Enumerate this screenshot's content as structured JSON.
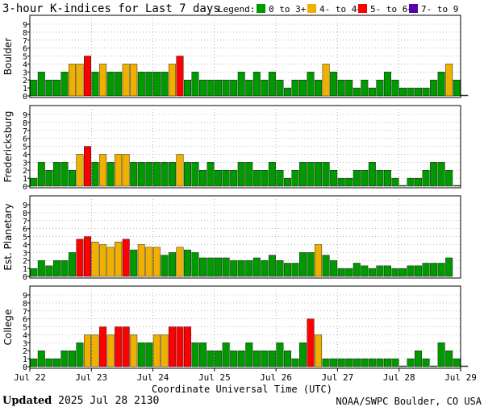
{
  "chart_data": {
    "type": "bar",
    "title": "3-hour K-indices for Last 7 days",
    "legend": {
      "label": "Legend:",
      "placement": "top-right",
      "entries": [
        {
          "label": "0 to 3+",
          "color": "#009900"
        },
        {
          "label": "4- to 4+",
          "color": "#f0b000"
        },
        {
          "label": "5- to 6+",
          "color": "#ff0000"
        },
        {
          "label": "7- to 9",
          "color": "#5500aa"
        }
      ]
    },
    "xlabel": "Coordinate Universal Time (UTC)",
    "x_ticks": [
      "Jul 22",
      "Jul 23",
      "Jul 24",
      "Jul 25",
      "Jul 26",
      "Jul 27",
      "Jul 28",
      "Jul 29"
    ],
    "ylim": [
      0,
      9
    ],
    "y_ticks": [
      "0",
      "1",
      "2",
      "3",
      "4",
      "5",
      "6",
      "7",
      "8",
      "9"
    ],
    "grid": "dotted",
    "intervals_per_day": 8,
    "series": [
      {
        "name": "Boulder",
        "values": [
          2,
          3,
          2,
          2,
          3,
          4,
          4,
          5,
          3,
          4,
          3,
          3,
          4,
          4,
          3,
          3,
          3,
          3,
          4,
          5,
          2,
          3,
          2,
          2,
          2,
          2,
          2,
          3,
          2,
          3,
          2,
          3,
          2,
          1,
          2,
          2,
          3,
          2,
          4,
          3,
          2,
          2,
          1,
          2,
          1,
          2,
          3,
          2,
          1,
          1,
          1,
          1,
          2,
          3,
          4,
          2,
          0
        ]
      },
      {
        "name": "Fredericksburg",
        "values": [
          1,
          3,
          2,
          3,
          3,
          2,
          4,
          5,
          3,
          4,
          3,
          4,
          4,
          3,
          3,
          3,
          3,
          3,
          3,
          4,
          3,
          3,
          2,
          3,
          2,
          2,
          2,
          3,
          3,
          2,
          2,
          3,
          2,
          1,
          2,
          3,
          3,
          3,
          3,
          2,
          1,
          1,
          2,
          2,
          3,
          2,
          2,
          1,
          0,
          1,
          1,
          2,
          3,
          3,
          2,
          0
        ]
      },
      {
        "name": "Est. Planetary",
        "values": [
          1,
          2,
          1.33,
          2,
          2,
          3,
          4.67,
          5,
          4.33,
          4,
          3.67,
          4.33,
          4.67,
          3.33,
          4,
          3.67,
          3.67,
          2.67,
          3,
          3.67,
          3.33,
          3,
          2.33,
          2.33,
          2.33,
          2.33,
          2,
          2,
          2,
          2.33,
          2,
          2.67,
          2,
          1.67,
          1.67,
          3,
          3,
          4,
          2.67,
          2,
          1,
          1,
          1.67,
          1.33,
          1,
          1.33,
          1.33,
          1,
          1,
          1.33,
          1.33,
          1.67,
          1.67,
          1.67,
          2.33
        ]
      },
      {
        "name": "College",
        "values": [
          1,
          2,
          1,
          1,
          2,
          2,
          3,
          4,
          4,
          5,
          4,
          5,
          5,
          4,
          3,
          3,
          4,
          4,
          5,
          5,
          5,
          3,
          3,
          2,
          2,
          3,
          2,
          2,
          3,
          2,
          2,
          2,
          3,
          2,
          1,
          3,
          6,
          4,
          1,
          1,
          1,
          1,
          1,
          1,
          1,
          1,
          1,
          1,
          0,
          1,
          2,
          1,
          0,
          3,
          2,
          1,
          0
        ]
      }
    ]
  },
  "footer": {
    "updated_label": "Updated",
    "updated_value": "2025 Jul 28 2130",
    "credit": "NOAA/SWPC Boulder, CO USA"
  }
}
